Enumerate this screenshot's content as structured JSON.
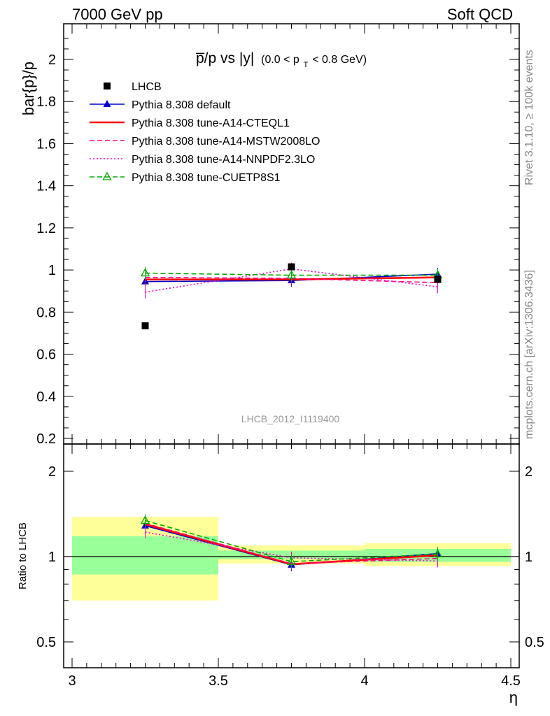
{
  "header": {
    "left": "7000 GeV pp",
    "right": "Soft QCD"
  },
  "side_labels": {
    "top": "Rivet 3.1.10, ≥ 100k events",
    "bottom": "mcplots.cern.ch [arXiv:1306.3436]"
  },
  "analysis_id": "LHCB_2012_I1119400",
  "chart_data": [
    {
      "type": "line",
      "title": "p̅/p vs |y|",
      "title_note": "(0.0 < p",
      "title_note_sub": "T",
      "title_note_end": " < 0.8 GeV)",
      "xlabel": "η",
      "ylabel": "bar{p}/p",
      "xlim": [
        3.0,
        4.5
      ],
      "ylim": [
        0.18,
        2.18
      ],
      "yticks": [
        "0.2",
        "0.4",
        "0.6",
        "0.8",
        "1",
        "1.2",
        "1.4",
        "1.6",
        "1.8",
        "2"
      ],
      "legend_placement": "top-left",
      "data": {
        "name": "LHCB",
        "x": [
          3.25,
          3.75,
          4.25
        ],
        "y": [
          0.735,
          1.015,
          0.955
        ]
      },
      "series": [
        {
          "name": "Pythia 8.308 default",
          "color": "#0000cc",
          "style": "solid",
          "marker": "triangle",
          "x": [
            3.25,
            3.75,
            4.25
          ],
          "y": [
            0.945,
            0.95,
            0.98
          ]
        },
        {
          "name": "Pythia 8.308 tune-A14-CTEQL1",
          "color": "#ff0000",
          "style": "solid-thick",
          "marker": "none",
          "x": [
            3.25,
            3.75,
            4.25
          ],
          "y": [
            0.955,
            0.955,
            0.965
          ]
        },
        {
          "name": "Pythia 8.308 tune-A14-MSTW2008LO",
          "color": "#ff0080",
          "style": "dashed",
          "marker": "none",
          "x": [
            3.25,
            3.75,
            4.25
          ],
          "y": [
            0.965,
            0.96,
            0.94
          ]
        },
        {
          "name": "Pythia 8.308 tune-A14-NNPDF2.3LO",
          "color": "#ff00cc",
          "style": "dotted",
          "marker": "none",
          "x": [
            3.25,
            3.75,
            4.25
          ],
          "y": [
            0.895,
            1.005,
            0.92
          ]
        },
        {
          "name": "Pythia 8.308 tune-CUETP8S1",
          "color": "#00aa00",
          "style": "dashed",
          "marker": "open-triangle",
          "x": [
            3.25,
            3.75,
            4.25
          ],
          "y": [
            0.985,
            0.975,
            0.975
          ]
        }
      ]
    },
    {
      "type": "line",
      "title": "",
      "xlabel": "η",
      "ylabel": "Ratio to LHCB",
      "xlim": [
        3.0,
        4.5
      ],
      "ylim": [
        0.41,
        2.4
      ],
      "log_y": true,
      "yticks": [
        "0.5",
        "1",
        "2"
      ],
      "xticks": [
        "3",
        "3.5",
        "4",
        "4.5"
      ],
      "bands": [
        {
          "x": [
            3.0,
            3.5
          ],
          "yellow": [
            0.7,
            1.38
          ],
          "green": [
            0.865,
            1.18
          ]
        },
        {
          "x": [
            3.5,
            4.0
          ],
          "yellow": [
            0.945,
            1.095
          ],
          "green": [
            0.98,
            1.05
          ]
        },
        {
          "x": [
            4.0,
            4.5
          ],
          "yellow": [
            0.925,
            1.115
          ],
          "green": [
            0.958,
            1.065
          ]
        }
      ],
      "series": [
        {
          "name": "Pythia 8.308 default",
          "color": "#0000cc",
          "style": "solid",
          "marker": "triangle",
          "x": [
            3.25,
            3.75,
            4.25
          ],
          "y": [
            1.285,
            0.935,
            1.025
          ]
        },
        {
          "name": "Pythia 8.308 tune-A14-CTEQL1",
          "color": "#ff0000",
          "style": "solid-thick",
          "marker": "none",
          "x": [
            3.25,
            3.75,
            4.25
          ],
          "y": [
            1.3,
            0.94,
            1.01
          ]
        },
        {
          "name": "Pythia 8.308 tune-A14-MSTW2008LO",
          "color": "#ff0080",
          "style": "dashed",
          "marker": "none",
          "x": [
            3.25,
            3.75,
            4.25
          ],
          "y": [
            1.31,
            0.945,
            0.985
          ]
        },
        {
          "name": "Pythia 8.308 tune-A14-NNPDF2.3LO",
          "color": "#ff00cc",
          "style": "dotted",
          "marker": "none",
          "x": [
            3.25,
            3.75,
            4.25
          ],
          "y": [
            1.22,
            0.99,
            0.965
          ]
        },
        {
          "name": "Pythia 8.308 tune-CUETP8S1",
          "color": "#00aa00",
          "style": "dashed",
          "marker": "open-triangle",
          "x": [
            3.25,
            3.75,
            4.25
          ],
          "y": [
            1.34,
            0.96,
            1.02
          ]
        }
      ]
    }
  ]
}
